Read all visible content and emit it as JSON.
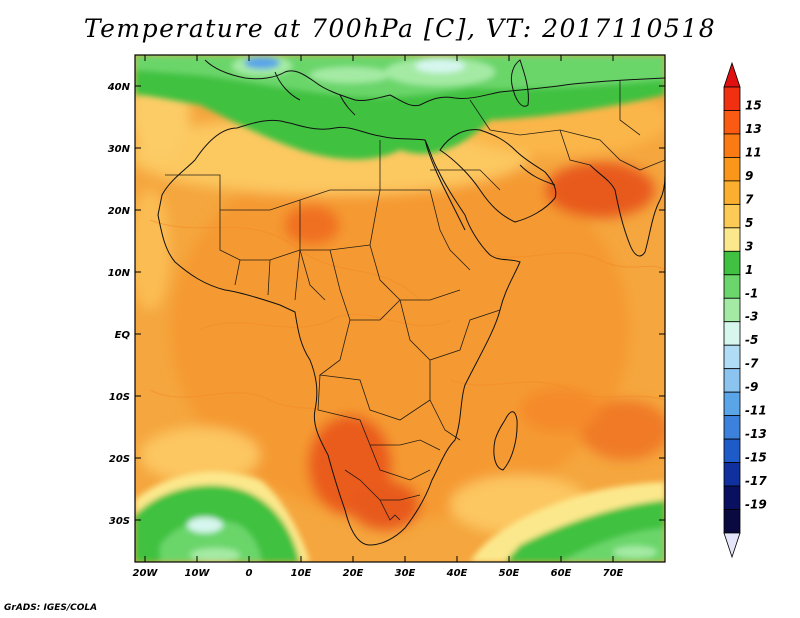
{
  "title": "Temperature at 700hPa [C], VT: 2017110518",
  "credit": "GrADS: IGES/COLA",
  "lat_labels": [
    "40N",
    "30N",
    "20N",
    "10N",
    "EQ",
    "10S",
    "20S",
    "30S"
  ],
  "lon_labels": [
    "20W",
    "10W",
    "0",
    "10E",
    "20E",
    "30E",
    "40E",
    "50E",
    "60E",
    "70E"
  ],
  "colorbar": {
    "labels": [
      "15",
      "13",
      "11",
      "9",
      "7",
      "5",
      "3",
      "1",
      "-1",
      "-3",
      "-5",
      "-7",
      "-9",
      "-11",
      "-13",
      "-15",
      "-17",
      "-19"
    ],
    "colors": [
      "#f03010",
      "#fa5a12",
      "#fa7a14",
      "#fa961a",
      "#faaf2e",
      "#fcca55",
      "#fce88c",
      "#41c141",
      "#6bd66b",
      "#a4eaa4",
      "#d6f6ee",
      "#b0dcf5",
      "#8cc4f0",
      "#5aa4e8",
      "#3c82dc",
      "#1e5ac8",
      "#1030a0",
      "#0a1060",
      "#0a0a40"
    ],
    "over_color": "#e01010",
    "under_color": "#e6e6fa"
  },
  "colors": {
    "ocean_warm": "#f5a03c",
    "land_warm": "#f7a336",
    "hot": "#f07822",
    "hottest": "#e85a1e",
    "cool_green": "#41c141",
    "mid_green": "#6bd66b",
    "pale_green": "#a4eaa4",
    "cyan": "#d6f6ee",
    "blue": "#5aa4e8",
    "yellow": "#fce88c",
    "tan": "#fcca55"
  }
}
